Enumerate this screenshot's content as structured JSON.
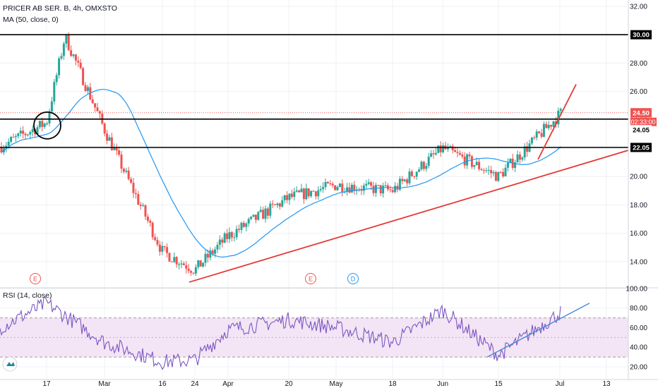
{
  "header": {
    "symbol": "PRICER AB SER. B, 4h, OMXSTO",
    "ma_label": "MA (50, close, 0)",
    "rsi_label": "RSI (14, close)"
  },
  "colors": {
    "up": "#26a69a",
    "down": "#ef5350",
    "ma": "#2196f3",
    "rsi": "#7e57c2",
    "rsi_band": "#f3e5f5",
    "trendline": "#e53935",
    "rsi_trendline": "#4a8ad4",
    "level": "#000000",
    "grid": "#eef0f3",
    "axis_text": "#131722"
  },
  "chart_data": [
    {
      "type": "candlestick",
      "x_ticks": [
        "17",
        "Mar",
        "16",
        "24",
        "Apr",
        "20",
        "May",
        "18",
        "Jun",
        "15",
        "Jul",
        "13"
      ],
      "y_ticks": [
        "14.00",
        "16.00",
        "18.00",
        "20.00",
        "22.00",
        "24.00",
        "26.00",
        "28.00",
        "30.00",
        "32.00"
      ],
      "ylim": [
        12.3,
        32.6
      ],
      "series_ma": "MA (50, close, 0)",
      "key_points": [
        {
          "x": "start",
          "close": 22.1
        },
        {
          "x": "17",
          "close": 23.8
        },
        {
          "x": "peak",
          "close": 29.9
        },
        {
          "x": "Mar",
          "close": 23.3
        },
        {
          "x": "16",
          "close": 14.7
        },
        {
          "x": "24",
          "close": 13.4
        },
        {
          "x": "Apr",
          "close": 15.8
        },
        {
          "x": "20",
          "close": 18.5
        },
        {
          "x": "May",
          "close": 19.4
        },
        {
          "x": "18",
          "close": 19.0
        },
        {
          "x": "Jun",
          "close": 22.0
        },
        {
          "x": "15",
          "close": 20.0
        },
        {
          "x": "last",
          "close": 24.5
        }
      ],
      "horizontal_levels": [
        "30.00",
        "24.05",
        "22.05"
      ],
      "price_labels": {
        "last_price": "24.50",
        "countdown": "02:33:00"
      },
      "event_markers": [
        "E",
        "E",
        "D"
      ]
    },
    {
      "type": "line",
      "name": "RSI (14, close)",
      "y_ticks": [
        "20.00",
        "40.00",
        "60.00",
        "80.00",
        "100.00"
      ],
      "ylim": [
        13,
        102
      ],
      "band": [
        30,
        70
      ],
      "key_points": [
        {
          "x": "start",
          "value": 60
        },
        {
          "x": "17",
          "value": 85
        },
        {
          "x": "Mar",
          "value": 45
        },
        {
          "x": "16",
          "value": 25
        },
        {
          "x": "24",
          "value": 27
        },
        {
          "x": "Apr",
          "value": 58
        },
        {
          "x": "20",
          "value": 68
        },
        {
          "x": "May",
          "value": 60
        },
        {
          "x": "18",
          "value": 45
        },
        {
          "x": "Jun",
          "value": 78
        },
        {
          "x": "15",
          "value": 32
        },
        {
          "x": "last",
          "value": 76
        }
      ]
    }
  ]
}
